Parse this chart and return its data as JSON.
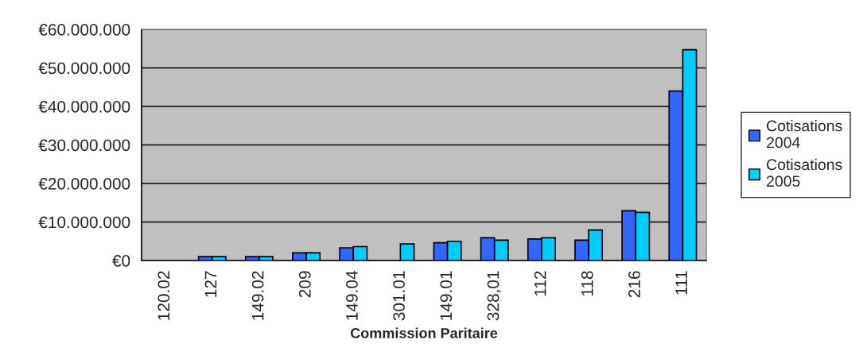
{
  "chart_data": {
    "type": "bar",
    "xlabel": "Commission Paritaire",
    "categories": [
      "120.02",
      "127",
      "149.02",
      "209",
      "149.04",
      "301.01",
      "149.01",
      "328,01",
      "112",
      "118",
      "216",
      "111"
    ],
    "series": [
      {
        "name": "Cotisations 2004",
        "color": "#3366ff",
        "values": [
          null,
          1000000,
          1000000,
          2000000,
          3300000,
          null,
          4600000,
          5900000,
          5600000,
          5300000,
          12900000,
          44000000
        ]
      },
      {
        "name": "Cotisations 2005",
        "color": "#00ccff",
        "values": [
          null,
          1000000,
          1000000,
          2000000,
          3600000,
          4300000,
          5000000,
          5300000,
          5900000,
          7900000,
          12500000,
          54700000
        ]
      }
    ],
    "ylim": [
      0,
      60000000
    ],
    "yticks": [
      {
        "value": 0,
        "label": "€0"
      },
      {
        "value": 10000000,
        "label": "€10.000.000"
      },
      {
        "value": 20000000,
        "label": "€20.000.000"
      },
      {
        "value": 30000000,
        "label": "€30.000.000"
      },
      {
        "value": 40000000,
        "label": "€40.000.000"
      },
      {
        "value": 50000000,
        "label": "€50.000.000"
      },
      {
        "value": 60000000,
        "label": "€60.000.000"
      }
    ],
    "grid": "y",
    "legend": "right"
  }
}
